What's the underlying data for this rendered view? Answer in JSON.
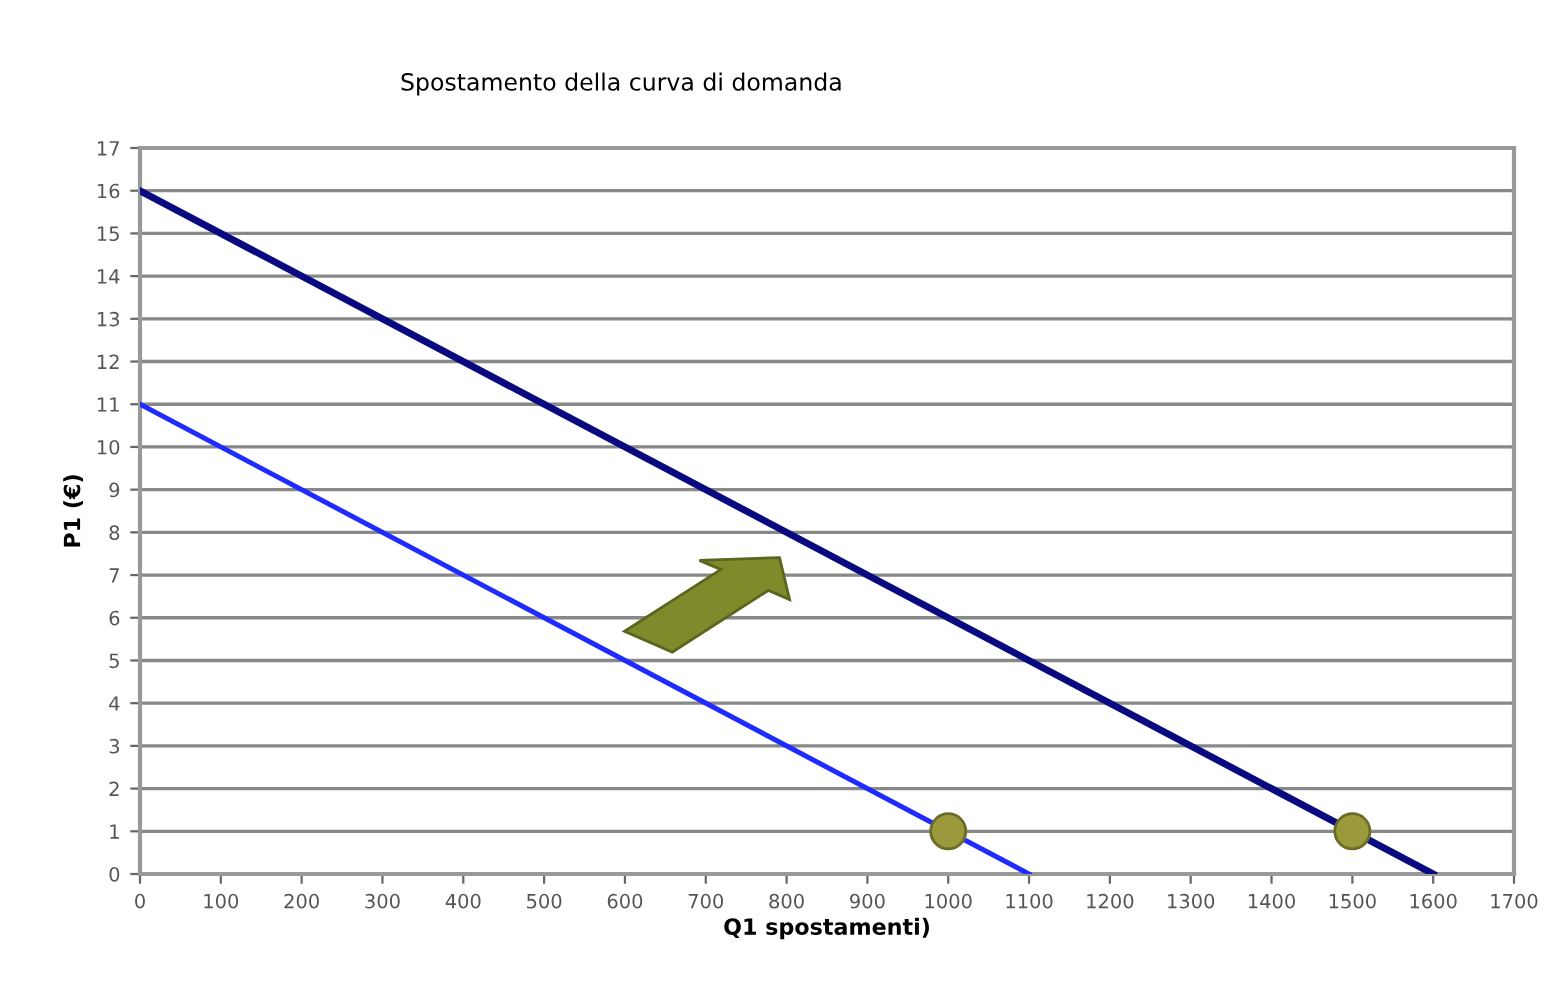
{
  "chart_data": {
    "type": "line",
    "title": "Spostamento della curva di domanda",
    "xlabel": "Q1 spostamenti)",
    "ylabel": "P1 (€)",
    "series": [
      {
        "color": "#0a0a80",
        "x": [
          0,
          1600
        ],
        "values": [
          16,
          0
        ]
      },
      {
        "color": "#1f2bff",
        "x": [
          0,
          1100
        ],
        "values": [
          11,
          0
        ]
      },
      {
        "type": "scatter",
        "marker": "circle",
        "color": "#9a9a3c",
        "x": [
          1000,
          1500
        ],
        "values": [
          1,
          1
        ]
      }
    ],
    "xlim": [
      0,
      1700
    ],
    "xticks": [
      0,
      100,
      200,
      300,
      400,
      500,
      600,
      700,
      800,
      900,
      1000,
      1100,
      1200,
      1300,
      1400,
      1500,
      1600,
      1700
    ],
    "ylim": [
      0,
      17
    ],
    "yticks": [
      0,
      1,
      2,
      3,
      4,
      5,
      6,
      7,
      8,
      9,
      10,
      11,
      12,
      13,
      14,
      15,
      16,
      17
    ],
    "grid": "y",
    "legend": false,
    "line_style": "solid"
  }
}
